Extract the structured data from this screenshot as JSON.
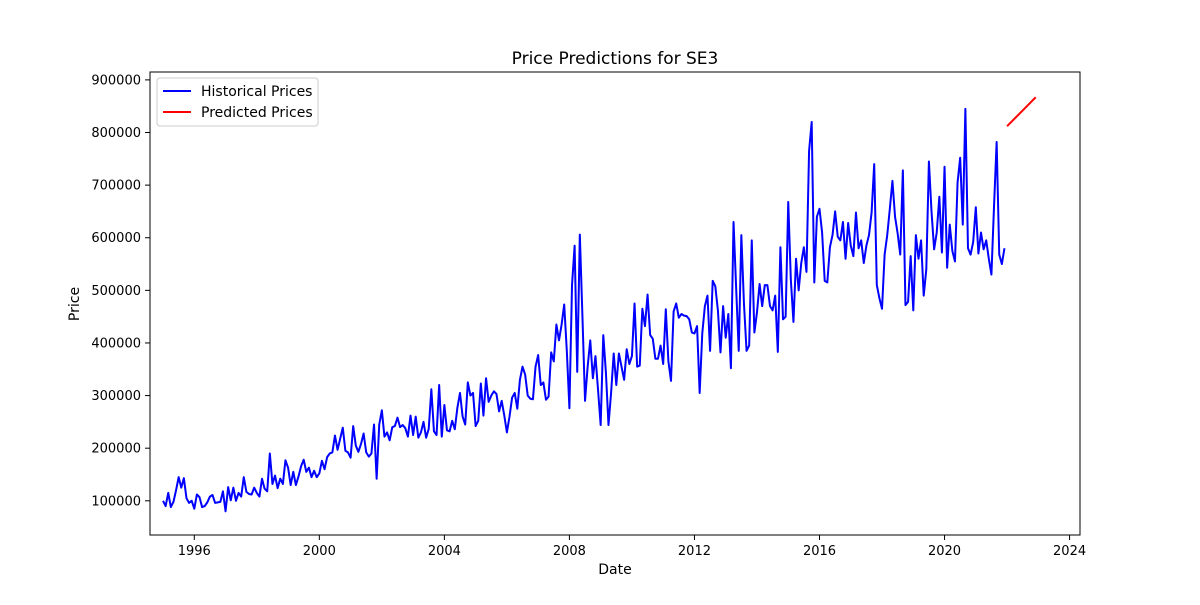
{
  "chart_data": {
    "type": "line",
    "title": "Price Predictions for SE3",
    "xlabel": "Date",
    "ylabel": "Price",
    "xlim": [
      "1994-08-01",
      "2024-05-01"
    ],
    "ylim": [
      35000,
      915000
    ],
    "x_ticks": [
      "1996",
      "2000",
      "2004",
      "2008",
      "2012",
      "2016",
      "2020",
      "2024"
    ],
    "y_ticks": [
      "100000",
      "200000",
      "300000",
      "400000",
      "500000",
      "600000",
      "700000",
      "800000",
      "900000"
    ],
    "grid": false,
    "legend_position": "top-left",
    "series": [
      {
        "name": "Historical Prices",
        "color": "#0000ff",
        "start": "1995-01",
        "frequency": "monthly",
        "values": [
          100000,
          90000,
          115000,
          88000,
          98000,
          120000,
          145000,
          125000,
          143000,
          105000,
          96000,
          100000,
          85000,
          112000,
          107000,
          88000,
          90000,
          97000,
          108000,
          111000,
          96000,
          97000,
          98000,
          118000,
          80000,
          126000,
          101000,
          125000,
          100000,
          115000,
          108000,
          145000,
          117000,
          113000,
          112000,
          125000,
          115000,
          108000,
          142000,
          123000,
          118000,
          190000,
          132000,
          148000,
          124000,
          142000,
          132000,
          177000,
          163000,
          130000,
          155000,
          130000,
          146000,
          166000,
          178000,
          155000,
          163000,
          145000,
          157000,
          145000,
          152000,
          176000,
          160000,
          183000,
          190000,
          192000,
          224000,
          197000,
          218000,
          239000,
          195000,
          192000,
          182000,
          242000,
          205000,
          193000,
          208000,
          228000,
          192000,
          184000,
          190000,
          245000,
          142000,
          245000,
          272000,
          222000,
          230000,
          215000,
          240000,
          242000,
          258000,
          240000,
          244000,
          238000,
          222000,
          262000,
          225000,
          260000,
          220000,
          230000,
          250000,
          220000,
          237000,
          312000,
          232000,
          225000,
          320000,
          222000,
          282000,
          234000,
          232000,
          252000,
          236000,
          277000,
          305000,
          260000,
          245000,
          325000,
          300000,
          305000,
          242000,
          252000,
          323000,
          262000,
          333000,
          288000,
          300000,
          308000,
          303000,
          270000,
          290000,
          262000,
          230000,
          260000,
          296000,
          305000,
          275000,
          330000,
          355000,
          340000,
          300000,
          294000,
          293000,
          355000,
          377000,
          320000,
          325000,
          292000,
          298000,
          382000,
          365000,
          435000,
          405000,
          435000,
          473000,
          385000,
          276000,
          510000,
          585000,
          345000,
          606000,
          450000,
          290000,
          355000,
          405000,
          333000,
          375000,
          310000,
          244000,
          415000,
          345000,
          244000,
          305000,
          380000,
          320000,
          380000,
          355000,
          330000,
          388000,
          360000,
          375000,
          475000,
          355000,
          357000,
          465000,
          432000,
          492000,
          415000,
          408000,
          370000,
          370000,
          395000,
          360000,
          464000,
          365000,
          328000,
          460000,
          475000,
          448000,
          455000,
          452000,
          451000,
          445000,
          420000,
          418000,
          432000,
          305000,
          418000,
          470000,
          490000,
          385000,
          518000,
          508000,
          462000,
          382000,
          470000,
          410000,
          455000,
          352000,
          630000,
          505000,
          385000,
          605000,
          475000,
          385000,
          395000,
          595000,
          420000,
          458000,
          512000,
          470000,
          510000,
          510000,
          470000,
          462000,
          490000,
          383000,
          582000,
          445000,
          450000,
          668000,
          520000,
          440000,
          560000,
          500000,
          552000,
          582000,
          535000,
          765000,
          820000,
          515000,
          640000,
          655000,
          610000,
          518000,
          515000,
          582000,
          605000,
          650000,
          602000,
          595000,
          630000,
          560000,
          628000,
          585000,
          565000,
          648000,
          580000,
          595000,
          552000,
          585000,
          605000,
          648000,
          740000,
          510000,
          485000,
          465000,
          568000,
          605000,
          655000,
          708000,
          640000,
          608000,
          568000,
          728000,
          472000,
          478000,
          565000,
          462000,
          605000,
          560000,
          595000,
          490000,
          540000,
          745000,
          650000,
          578000,
          610000,
          678000,
          572000,
          735000,
          543000,
          625000,
          575000,
          555000,
          705000,
          752000,
          625000,
          845000,
          580000,
          568000,
          592000,
          658000,
          570000,
          610000,
          578000,
          595000,
          560000,
          530000,
          660000,
          782000,
          568000,
          550000,
          580000
        ]
      },
      {
        "name": "Predicted Prices",
        "color": "#ff0000",
        "start": "2022-01",
        "frequency": "monthly",
        "values": [
          812000,
          817000,
          822000,
          827000,
          832000,
          837000,
          842000,
          847000,
          852000,
          857000,
          862000,
          867000
        ]
      }
    ]
  }
}
